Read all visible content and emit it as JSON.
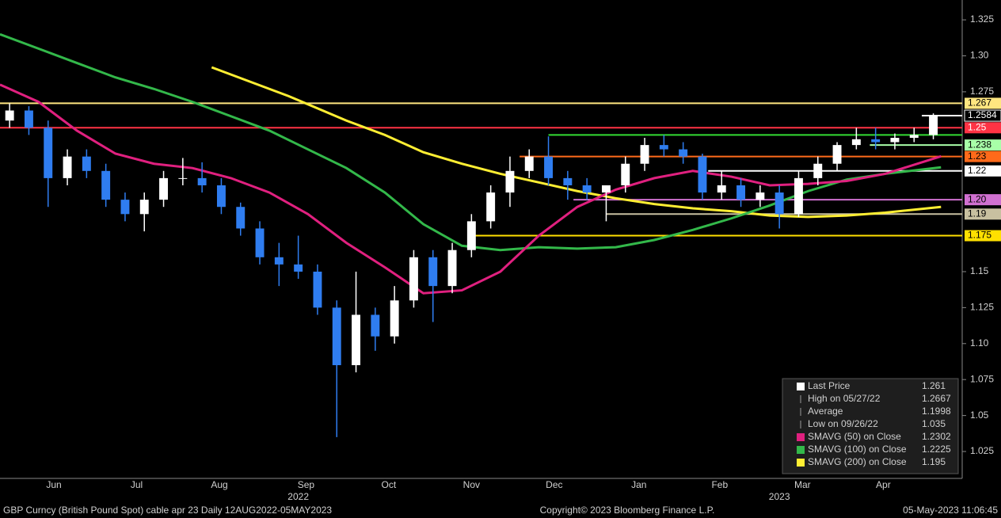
{
  "chart_data": {
    "type": "candlestick",
    "x": [
      0,
      1,
      2,
      3,
      4,
      5,
      6,
      7,
      8,
      9,
      10,
      11,
      12,
      13,
      14,
      15,
      16,
      17,
      18,
      19,
      20,
      21,
      22,
      23,
      24,
      25,
      26,
      27,
      28,
      29,
      30,
      31,
      32,
      33,
      34,
      35,
      36,
      37,
      38,
      39,
      40,
      41,
      42,
      43,
      44,
      45,
      46,
      47,
      48
    ],
    "open": [
      1.255,
      1.262,
      1.25,
      1.215,
      1.23,
      1.22,
      1.2,
      1.19,
      1.2,
      1.215,
      1.215,
      1.21,
      1.195,
      1.18,
      1.16,
      1.155,
      1.15,
      1.125,
      1.085,
      1.12,
      1.105,
      1.13,
      1.16,
      1.14,
      1.165,
      1.185,
      1.205,
      1.22,
      1.23,
      1.215,
      1.21,
      1.205,
      1.21,
      1.225,
      1.238,
      1.235,
      1.23,
      1.205,
      1.21,
      1.2,
      1.205,
      1.19,
      1.215,
      1.225,
      1.238,
      1.242,
      1.24,
      1.243,
      1.245
    ],
    "high": [
      1.267,
      1.265,
      1.255,
      1.235,
      1.235,
      1.225,
      1.205,
      1.205,
      1.22,
      1.229,
      1.226,
      1.215,
      1.198,
      1.185,
      1.17,
      1.175,
      1.155,
      1.13,
      1.15,
      1.125,
      1.14,
      1.165,
      1.165,
      1.17,
      1.19,
      1.21,
      1.23,
      1.235,
      1.244,
      1.22,
      1.215,
      1.21,
      1.23,
      1.243,
      1.245,
      1.24,
      1.232,
      1.22,
      1.215,
      1.21,
      1.21,
      1.22,
      1.23,
      1.24,
      1.25,
      1.25,
      1.246,
      1.25,
      1.26
    ],
    "low": [
      1.25,
      1.245,
      1.195,
      1.21,
      1.215,
      1.195,
      1.185,
      1.178,
      1.195,
      1.21,
      1.205,
      1.19,
      1.175,
      1.155,
      1.14,
      1.145,
      1.12,
      1.035,
      1.08,
      1.095,
      1.1,
      1.125,
      1.115,
      1.135,
      1.16,
      1.18,
      1.195,
      1.215,
      1.21,
      1.2,
      1.2,
      1.185,
      1.205,
      1.22,
      1.23,
      1.225,
      1.2,
      1.2,
      1.195,
      1.195,
      1.18,
      1.188,
      1.21,
      1.22,
      1.235,
      1.235,
      1.235,
      1.24,
      1.242
    ],
    "close": [
      1.262,
      1.25,
      1.215,
      1.23,
      1.22,
      1.2,
      1.19,
      1.2,
      1.215,
      1.215,
      1.21,
      1.195,
      1.18,
      1.16,
      1.155,
      1.15,
      1.125,
      1.085,
      1.12,
      1.105,
      1.13,
      1.16,
      1.14,
      1.165,
      1.185,
      1.205,
      1.22,
      1.23,
      1.215,
      1.21,
      1.205,
      1.21,
      1.225,
      1.238,
      1.235,
      1.23,
      1.205,
      1.21,
      1.2,
      1.205,
      1.19,
      1.215,
      1.225,
      1.238,
      1.242,
      1.24,
      1.243,
      1.245,
      1.258
    ],
    "up_color": "#ffffff",
    "down_color": "#2f7df0",
    "series": [
      {
        "name": "SMAVG (200)",
        "color": "#ffee33",
        "x": [
          11,
          15,
          18,
          20,
          22,
          24,
          26,
          28,
          30,
          32,
          34,
          36,
          38,
          40,
          42,
          44,
          46,
          48.9
        ],
        "values": [
          1.292,
          1.272,
          1.255,
          1.245,
          1.233,
          1.225,
          1.218,
          1.212,
          1.206,
          1.201,
          1.197,
          1.194,
          1.192,
          1.189,
          1.188,
          1.189,
          1.191,
          1.195
        ]
      },
      {
        "name": "SMAVG (100)",
        "color": "#33b84a",
        "x": [
          0,
          2,
          4,
          6,
          8,
          10,
          12,
          14,
          16,
          18,
          20,
          22,
          24,
          26,
          28,
          30,
          32,
          34,
          36,
          38,
          40,
          42,
          44,
          46,
          48.9
        ],
        "values": [
          1.315,
          1.305,
          1.295,
          1.285,
          1.277,
          1.268,
          1.258,
          1.248,
          1.235,
          1.222,
          1.205,
          1.183,
          1.168,
          1.165,
          1.167,
          1.166,
          1.167,
          1.172,
          1.179,
          1.187,
          1.196,
          1.206,
          1.214,
          1.218,
          1.2225
        ]
      },
      {
        "name": "SMAVG (50)",
        "color": "#e0207f",
        "x": [
          0,
          2,
          4,
          6,
          8,
          10,
          12,
          14,
          16,
          18,
          20,
          22,
          24,
          26,
          28,
          30,
          32,
          34,
          36,
          38,
          40,
          42,
          44,
          46,
          48.9
        ],
        "values": [
          1.28,
          1.268,
          1.248,
          1.232,
          1.225,
          1.222,
          1.215,
          1.205,
          1.19,
          1.17,
          1.153,
          1.135,
          1.137,
          1.15,
          1.175,
          1.195,
          1.207,
          1.215,
          1.22,
          1.216,
          1.21,
          1.211,
          1.213,
          1.218,
          1.2302
        ]
      }
    ],
    "levels": [
      {
        "value": 1.267,
        "label": "1.267",
        "color": "#ffe680",
        "text_color": "#000000",
        "x_start": 0
      },
      {
        "value": 1.2584,
        "label": "1.2584",
        "color": "#ffffff",
        "text_color": "#ffffff",
        "x_start": 47.9
      },
      {
        "value": 1.25,
        "label": "1.25",
        "color": "#ff3344",
        "text_color": "#ffffff",
        "x_start": 0
      },
      {
        "value": 1.245,
        "label": null,
        "color": "#33dd33",
        "text_color": "#000000",
        "x_start": 28.5
      },
      {
        "value": 1.238,
        "label": "1.238",
        "color": "#a8ffa8",
        "text_color": "#000000",
        "x_start": 45.2
      },
      {
        "value": 1.23,
        "label": "1.23",
        "color": "#ff6a1a",
        "text_color": "#000000",
        "x_start": 27
      },
      {
        "value": 1.22,
        "label": "1.22",
        "color": "#ffffff",
        "text_color": "#000000",
        "x_start": 36.8
      },
      {
        "value": 1.2,
        "label": "1.20",
        "color": "#d070d0",
        "text_color": "#000000",
        "x_start": 29.8
      },
      {
        "value": 1.19,
        "label": "1.19",
        "color": "#c8c0a0",
        "text_color": "#000000",
        "x_start": 31.5
      },
      {
        "value": 1.175,
        "label": "1.175",
        "color": "#ffe000",
        "text_color": "#000000",
        "x_start": 24.3
      }
    ],
    "xlim": [
      0,
      50
    ],
    "ylim": [
      1.0063,
      1.3388
    ],
    "yticks": [
      1.325,
      {
        "value": 1.3,
        "label": "1.30"
      },
      1.275,
      1.15,
      1.125,
      {
        "value": 1.1,
        "label": "1.10"
      },
      1.075,
      1.05,
      1.025
    ],
    "xticks": [
      {
        "value": 2.8,
        "label": "Jun"
      },
      {
        "value": 7.1,
        "label": "Jul"
      },
      {
        "value": 11.4,
        "label": "Aug"
      },
      {
        "value": 15.9,
        "label": "Sep"
      },
      {
        "value": 20.2,
        "label": "Oct"
      },
      {
        "value": 24.5,
        "label": "Nov"
      },
      {
        "value": 28.8,
        "label": "Dec"
      },
      {
        "value": 33.2,
        "label": "Jan"
      },
      {
        "value": 37.4,
        "label": "Feb"
      },
      {
        "value": 41.7,
        "label": "Mar"
      },
      {
        "value": 45.9,
        "label": "Apr"
      }
    ],
    "year_ticks": [
      {
        "value": 15.5,
        "label": "2022"
      },
      {
        "value": 40.5,
        "label": "2023"
      }
    ],
    "legend": [
      {
        "label": "Last Price",
        "color": "#ffffff",
        "value": 1.261
      },
      {
        "label": "High on 05/27/22",
        "color": null,
        "value": 1.2667
      },
      {
        "label": "Average",
        "color": null,
        "value": 1.1998
      },
      {
        "label": "Low on 09/26/22",
        "color": null,
        "value": 1.035
      },
      {
        "label": "SMAVG (50)  on Close",
        "color": "#e0207f",
        "value": 1.2302
      },
      {
        "label": "SMAVG (100)  on Close",
        "color": "#33b84a",
        "value": 1.2225
      },
      {
        "label": "SMAVG (200)  on Close",
        "color": "#ffee33",
        "value": 1.195
      }
    ]
  },
  "footer": {
    "left": "GBP Curncy (British Pound Spot) cable apr 23  Daily 12AUG2022-05MAY2023",
    "center": "Copyright© 2023 Bloomberg Finance L.P.",
    "right": "05-May-2023 11:06:45"
  }
}
